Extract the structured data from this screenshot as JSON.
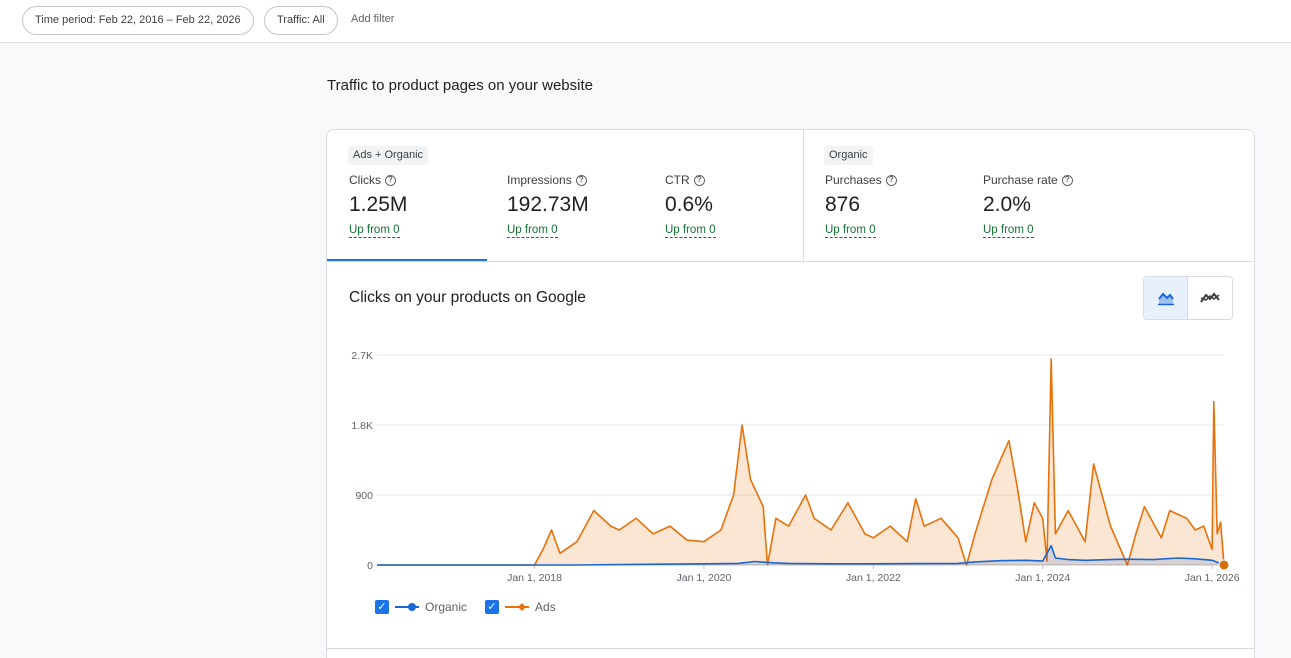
{
  "filters": {
    "time_period": "Time period: Feb 22, 2016 – Feb 22, 2026",
    "traffic": "Traffic: All",
    "add_filter": "Add filter"
  },
  "section_title": "Traffic to product pages on your website",
  "metrics": {
    "ads_organic_badge": "Ads + Organic",
    "organic_badge": "Organic",
    "help_glyph": "?",
    "clicks": {
      "label": "Clicks",
      "value": "1.25M",
      "delta": "Up from 0"
    },
    "impressions": {
      "label": "Impressions",
      "value": "192.73M",
      "delta": "Up from 0"
    },
    "ctr": {
      "label": "CTR",
      "value": "0.6%",
      "delta": "Up from 0"
    },
    "purchases": {
      "label": "Purchases",
      "value": "876",
      "delta": "Up from 0"
    },
    "purchase_rate": {
      "label": "Purchase rate",
      "value": "2.0%",
      "delta": "Up from 0"
    }
  },
  "chart": {
    "title": "Clicks on your products on Google",
    "toggle_icons": [
      "area-chart-icon",
      "line-chart-icon"
    ]
  },
  "chart_data": {
    "type": "area",
    "ylim": [
      0,
      2700
    ],
    "y_ticks": [
      "0",
      "900",
      "1.8K",
      "2.7K"
    ],
    "y_tick_values": [
      0,
      900,
      1800,
      2700
    ],
    "x_ticks": [
      "Jan 1, 2018",
      "Jan 1, 2020",
      "Jan 1, 2022",
      "Jan 1, 2024",
      "Jan 1, 2026"
    ],
    "x_tick_years": [
      2018,
      2020,
      2022,
      2024,
      2026
    ],
    "x_range": [
      2016.14,
      2026.14
    ],
    "grid": true,
    "legend_position": "bottom-left",
    "series": [
      {
        "name": "Organic",
        "color": "#1967d2",
        "points": [
          [
            2016.14,
            0
          ],
          [
            2018.5,
            0
          ],
          [
            2019.0,
            5
          ],
          [
            2019.5,
            10
          ],
          [
            2020.0,
            15
          ],
          [
            2020.4,
            20
          ],
          [
            2020.6,
            45
          ],
          [
            2020.8,
            30
          ],
          [
            2021.0,
            20
          ],
          [
            2021.5,
            15
          ],
          [
            2022.0,
            15
          ],
          [
            2022.5,
            18
          ],
          [
            2023.0,
            20
          ],
          [
            2023.2,
            40
          ],
          [
            2023.5,
            55
          ],
          [
            2023.8,
            60
          ],
          [
            2024.0,
            50
          ],
          [
            2024.1,
            250
          ],
          [
            2024.15,
            90
          ],
          [
            2024.3,
            70
          ],
          [
            2024.5,
            60
          ],
          [
            2024.8,
            70
          ],
          [
            2025.0,
            75
          ],
          [
            2025.3,
            70
          ],
          [
            2025.6,
            90
          ],
          [
            2025.8,
            80
          ],
          [
            2026.0,
            60
          ],
          [
            2026.14,
            0
          ]
        ]
      },
      {
        "name": "Ads",
        "color": "#e8710a",
        "points": [
          [
            2016.14,
            0
          ],
          [
            2018.0,
            0
          ],
          [
            2018.1,
            200
          ],
          [
            2018.2,
            450
          ],
          [
            2018.3,
            150
          ],
          [
            2018.5,
            300
          ],
          [
            2018.7,
            700
          ],
          [
            2018.9,
            500
          ],
          [
            2019.0,
            450
          ],
          [
            2019.2,
            600
          ],
          [
            2019.4,
            400
          ],
          [
            2019.6,
            500
          ],
          [
            2019.8,
            320
          ],
          [
            2020.0,
            300
          ],
          [
            2020.2,
            450
          ],
          [
            2020.35,
            900
          ],
          [
            2020.45,
            1800
          ],
          [
            2020.55,
            1100
          ],
          [
            2020.7,
            750
          ],
          [
            2020.75,
            0
          ],
          [
            2020.85,
            600
          ],
          [
            2021.0,
            500
          ],
          [
            2021.2,
            900
          ],
          [
            2021.3,
            600
          ],
          [
            2021.5,
            450
          ],
          [
            2021.7,
            800
          ],
          [
            2021.9,
            400
          ],
          [
            2022.0,
            350
          ],
          [
            2022.2,
            500
          ],
          [
            2022.4,
            300
          ],
          [
            2022.5,
            850
          ],
          [
            2022.6,
            500
          ],
          [
            2022.8,
            600
          ],
          [
            2023.0,
            350
          ],
          [
            2023.1,
            0
          ],
          [
            2023.2,
            400
          ],
          [
            2023.4,
            1100
          ],
          [
            2023.6,
            1600
          ],
          [
            2023.7,
            1000
          ],
          [
            2023.8,
            300
          ],
          [
            2023.9,
            800
          ],
          [
            2024.0,
            600
          ],
          [
            2024.05,
            50
          ],
          [
            2024.1,
            2650
          ],
          [
            2024.15,
            400
          ],
          [
            2024.3,
            700
          ],
          [
            2024.5,
            300
          ],
          [
            2024.6,
            1300
          ],
          [
            2024.7,
            900
          ],
          [
            2024.8,
            500
          ],
          [
            2025.0,
            0
          ],
          [
            2025.1,
            400
          ],
          [
            2025.2,
            750
          ],
          [
            2025.4,
            350
          ],
          [
            2025.5,
            700
          ],
          [
            2025.7,
            600
          ],
          [
            2025.8,
            450
          ],
          [
            2025.9,
            500
          ],
          [
            2026.0,
            200
          ],
          [
            2026.02,
            2100
          ],
          [
            2026.06,
            400
          ],
          [
            2026.1,
            550
          ],
          [
            2026.14,
            0
          ]
        ]
      }
    ]
  }
}
